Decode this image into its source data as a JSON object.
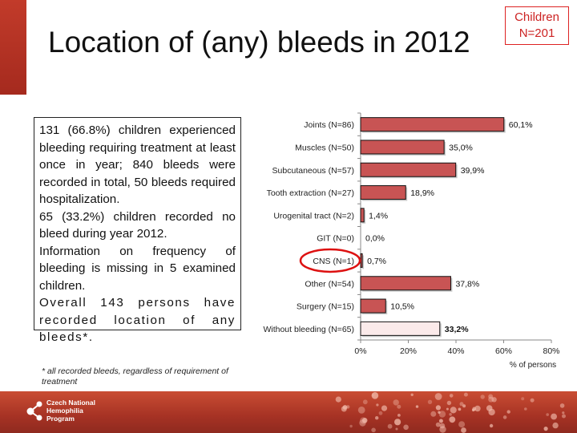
{
  "slide": {
    "title": "Location of (any) bleeds in 2012",
    "badge_line1": "Children",
    "badge_line2": "N=201"
  },
  "textbox": {
    "p1": "131 (66.8%) children experienced bleeding requiring treatment at least once in year; 840 bleeds were recorded in total, 50 bleeds required hospitalization.",
    "p2": "65 (33.2%) children recorded no bleed during year 2012.",
    "p3": "Information on frequency of bleeding is missing in 5 examined children.",
    "p4": "Overall 143 persons have recorded location of any bleeds*."
  },
  "footnote": "* all recorded bleeds, regardless of requirement of treatment",
  "logo": {
    "line1": "Czech National",
    "line2": "Hemophilia",
    "line3": "Program"
  },
  "colors": {
    "bar_fill": "#c85454",
    "bar_highlight_fill": "#fbeaea",
    "annotation_circle": "#dd1111",
    "accent": "#b22f22"
  },
  "chart_data": {
    "type": "bar",
    "orientation": "horizontal",
    "categories": [
      "Joints (N=86)",
      "Muscles (N=50)",
      "Subcutaneous (N=57)",
      "Tooth extraction (N=27)",
      "Urogenital tract (N=2)",
      "GIT (N=0)",
      "CNS (N=1)",
      "Other (N=54)",
      "Surgery (N=15)",
      "Without bleeding (N=65)"
    ],
    "values": [
      60.1,
      35.0,
      39.9,
      18.9,
      1.4,
      0.0,
      0.7,
      37.8,
      10.5,
      33.2
    ],
    "value_labels": [
      "60,1%",
      "35,0%",
      "39,9%",
      "18,9%",
      "1,4%",
      "0,0%",
      "0,7%",
      "37,8%",
      "10,5%",
      "33,2%"
    ],
    "highlight_index": 9,
    "circled_index": 6,
    "xlim": [
      0,
      80
    ],
    "xticks": [
      0,
      20,
      40,
      60,
      80
    ],
    "xtick_labels": [
      "0%",
      "20%",
      "40%",
      "60%",
      "80%"
    ],
    "xlabel": "% of persons",
    "grid": false
  }
}
